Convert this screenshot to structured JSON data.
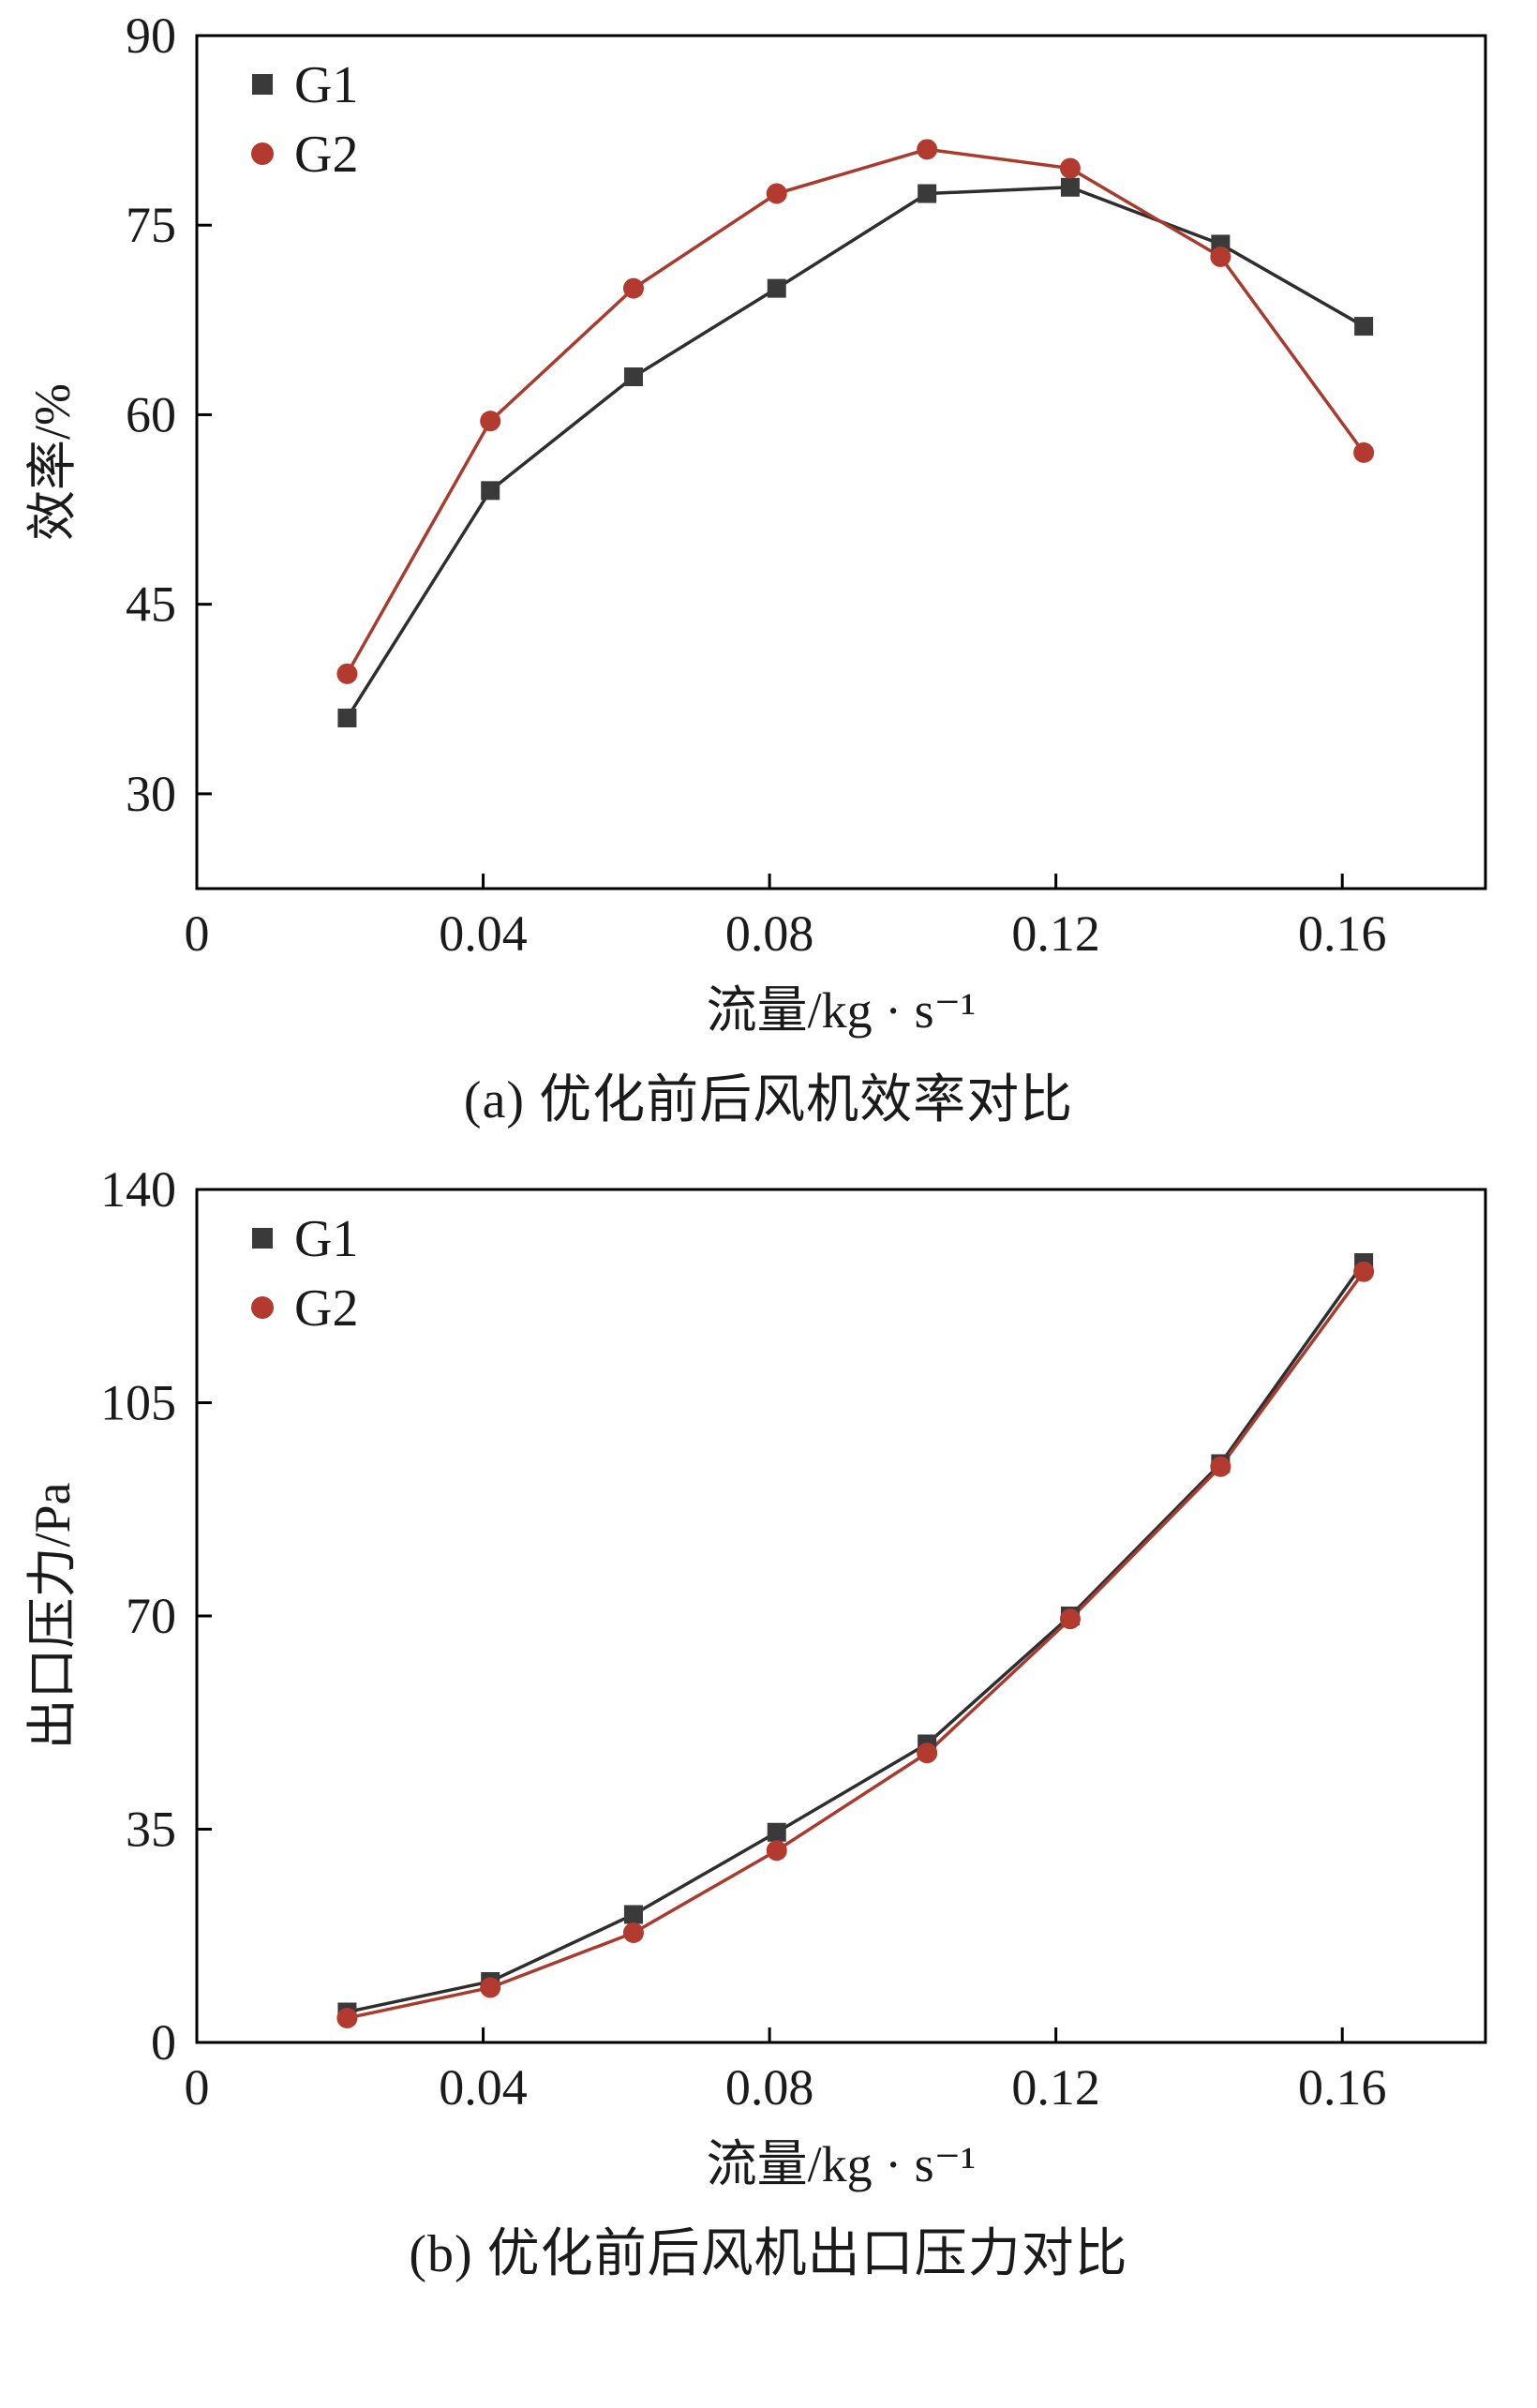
{
  "colors": {
    "axis": "#000000",
    "text": "#1a1a1a",
    "g1_marker": "#3a3a3a",
    "g1_line": "#2e2e2e",
    "g2_marker": "#b23a2e",
    "g2_line": "#a93a2e"
  },
  "chart_data": [
    {
      "type": "line",
      "caption": "(a) 优化前后风机效率对比",
      "xlabel": "流量/kg · s⁻¹",
      "ylabel": "效率/%",
      "xlim": [
        0,
        0.18
      ],
      "ylim": [
        22.5,
        90
      ],
      "grid": false,
      "legend_position": "top-left",
      "xticks": [
        {
          "v": 0,
          "label": "0"
        },
        {
          "v": 0.04,
          "label": "0.04"
        },
        {
          "v": 0.08,
          "label": "0.08"
        },
        {
          "v": 0.12,
          "label": "0.12"
        },
        {
          "v": 0.16,
          "label": "0.16"
        }
      ],
      "yticks": [
        {
          "v": 30,
          "label": "30"
        },
        {
          "v": 45,
          "label": "45"
        },
        {
          "v": 60,
          "label": "60"
        },
        {
          "v": 75,
          "label": "75"
        },
        {
          "v": 90,
          "label": "90"
        }
      ],
      "x": [
        0.021,
        0.041,
        0.061,
        0.081,
        0.102,
        0.122,
        0.143,
        0.163
      ],
      "series": [
        {
          "name": "G1",
          "marker": "square",
          "marker_color": "#3a3a3a",
          "line_color": "#2e2e2e",
          "values": [
            36,
            54,
            63,
            70,
            77.5,
            78,
            73.5,
            67
          ]
        },
        {
          "name": "G2",
          "marker": "circle",
          "marker_color": "#b23a2e",
          "line_color": "#a93a2e",
          "values": [
            39.5,
            59.5,
            70,
            77.5,
            81,
            79.5,
            72.5,
            57
          ]
        }
      ]
    },
    {
      "type": "line",
      "caption": "(b) 优化前后风机出口压力对比",
      "xlabel": "流量/kg · s⁻¹",
      "ylabel": "出口压力/Pa",
      "xlim": [
        0,
        0.18
      ],
      "ylim": [
        0,
        140
      ],
      "grid": false,
      "legend_position": "top-left",
      "xticks": [
        {
          "v": 0,
          "label": "0"
        },
        {
          "v": 0.04,
          "label": "0.04"
        },
        {
          "v": 0.08,
          "label": "0.08"
        },
        {
          "v": 0.12,
          "label": "0.12"
        },
        {
          "v": 0.16,
          "label": "0.16"
        }
      ],
      "yticks": [
        {
          "v": 0,
          "label": "0"
        },
        {
          "v": 35,
          "label": "35"
        },
        {
          "v": 70,
          "label": "70"
        },
        {
          "v": 105,
          "label": "105"
        },
        {
          "v": 140,
          "label": "140"
        }
      ],
      "x": [
        0.021,
        0.041,
        0.061,
        0.081,
        0.102,
        0.122,
        0.143,
        0.163
      ],
      "series": [
        {
          "name": "G1",
          "marker": "square",
          "marker_color": "#3a3a3a",
          "line_color": "#2e2e2e",
          "values": [
            5,
            10,
            21,
            34.5,
            49,
            70,
            95,
            128
          ]
        },
        {
          "name": "G2",
          "marker": "circle",
          "marker_color": "#b23a2e",
          "line_color": "#a93a2e",
          "values": [
            4,
            9,
            18,
            31.5,
            47.5,
            69.5,
            94.5,
            126.5
          ]
        }
      ]
    }
  ]
}
